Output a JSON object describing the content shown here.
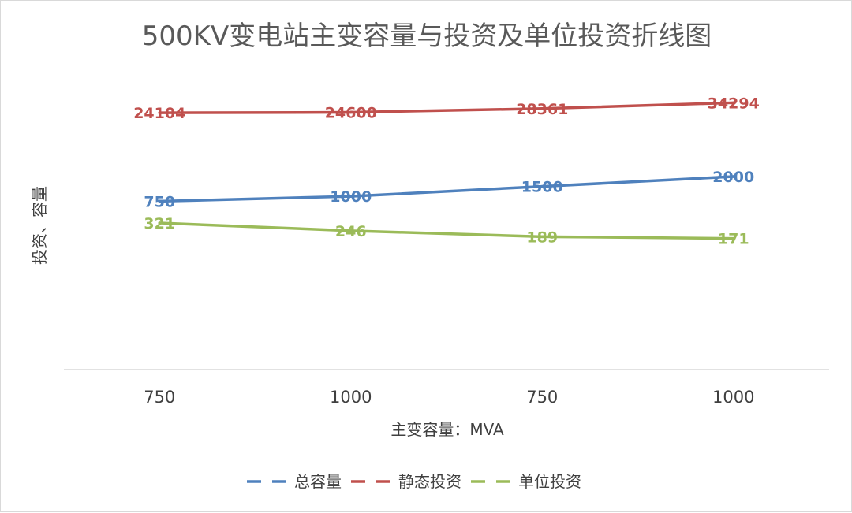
{
  "chart_data": {
    "type": "line",
    "title": "500KV变电站主变容量与投资及单位投资折线图",
    "xlabel": "主变容量：MVA",
    "ylabel": "投资、容量",
    "categories": [
      "750",
      "1000",
      "750",
      "1000"
    ],
    "ylim": [
      0,
      38000
    ],
    "grid": false,
    "legend_position": "bottom",
    "series": [
      {
        "name": "总容量",
        "values": [
          750,
          1000,
          1500,
          2000
        ],
        "color": "#4f81bd"
      },
      {
        "name": "静态投资",
        "values": [
          24104,
          24600,
          28361,
          34294
        ],
        "color": "#c0504d"
      },
      {
        "name": "单位投资",
        "values": [
          321,
          246,
          189,
          171
        ],
        "color": "#9bbb59"
      }
    ]
  }
}
